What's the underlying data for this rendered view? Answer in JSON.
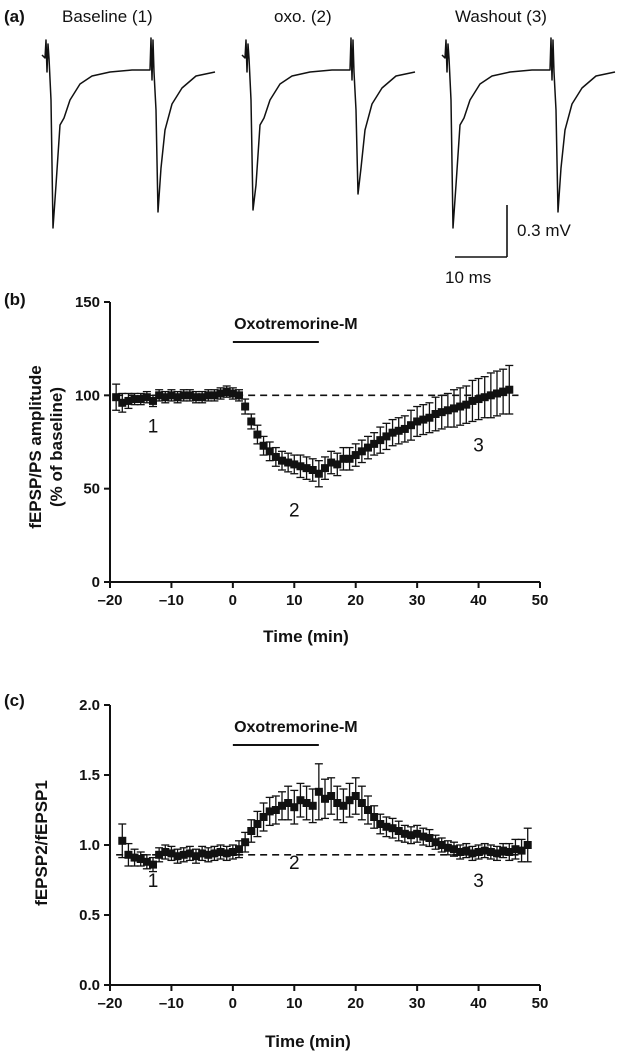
{
  "panel_a": {
    "label": "(a)",
    "traces": [
      "Baseline (1)",
      "oxo. (2)",
      "Washout (3)"
    ],
    "scale_v": "0.3 mV",
    "scale_t": "10 ms"
  },
  "colors": {
    "ink": "#111111",
    "background": "#ffffff"
  },
  "chart_data": [
    {
      "panel": "(b)",
      "type": "scatter",
      "title": "",
      "xlabel": "Time (min)",
      "ylabel": "fEPSP/PS amplitude",
      "ylabel2": "(% of baseline)",
      "xlim": [
        -20,
        50
      ],
      "ylim": [
        0,
        150
      ],
      "xticks": [
        "–20",
        "–10",
        "0",
        "10",
        "20",
        "30",
        "40",
        "50"
      ],
      "yticks": [
        "0",
        "50",
        "100",
        "150"
      ],
      "baseline": 100,
      "drug": {
        "label": "Oxotremorine-M",
        "start": 0,
        "end": 14
      },
      "period_labels": [
        {
          "text": "1",
          "x": -13,
          "y": 80
        },
        {
          "text": "2",
          "x": 10,
          "y": 35
        },
        {
          "text": "3",
          "x": 40,
          "y": 70
        }
      ],
      "series": [
        {
          "x": [
            -19,
            -18,
            -17,
            -16,
            -15,
            -14,
            -13,
            -12,
            -11,
            -10,
            -9,
            -8,
            -7,
            -6,
            -5,
            -4,
            -3,
            -2,
            -1,
            0,
            1,
            2,
            3,
            4,
            5,
            6,
            7,
            8,
            9,
            10,
            11,
            12,
            13,
            14,
            15,
            16,
            17,
            18,
            19,
            20,
            21,
            22,
            23,
            24,
            25,
            26,
            27,
            28,
            29,
            30,
            31,
            32,
            33,
            34,
            35,
            36,
            37,
            38,
            39,
            40,
            41,
            42,
            43,
            44,
            45
          ],
          "y": [
            99,
            96,
            97,
            98,
            98,
            99,
            97,
            100,
            99,
            100,
            99,
            100,
            100,
            99,
            99,
            100,
            100,
            101,
            102,
            101,
            100,
            94,
            86,
            79,
            73,
            70,
            67,
            65,
            64,
            63,
            62,
            61,
            60,
            58,
            61,
            64,
            63,
            66,
            66,
            68,
            70,
            72,
            74,
            76,
            78,
            80,
            81,
            82,
            84,
            86,
            87,
            88,
            90,
            91,
            92,
            93,
            94,
            95,
            97,
            98,
            99,
            100,
            101,
            102,
            103
          ],
          "err": [
            7,
            5,
            4,
            3,
            3,
            3,
            3,
            3,
            3,
            3,
            3,
            3,
            3,
            3,
            3,
            3,
            3,
            3,
            3,
            3,
            3,
            4,
            4,
            5,
            5,
            5,
            5,
            5,
            5,
            5,
            6,
            6,
            6,
            7,
            6,
            6,
            6,
            6,
            6,
            6,
            6,
            6,
            6,
            7,
            7,
            7,
            7,
            7,
            8,
            8,
            8,
            8,
            9,
            9,
            9,
            10,
            10,
            10,
            11,
            11,
            11,
            12,
            12,
            12,
            13
          ]
        }
      ]
    },
    {
      "panel": "(c)",
      "type": "scatter",
      "title": "",
      "xlabel": "Time (min)",
      "ylabel": "fEPSP2/fEPSP1",
      "xlim": [
        -20,
        50
      ],
      "ylim": [
        0.0,
        2.0
      ],
      "xticks": [
        "–20",
        "–10",
        "0",
        "10",
        "20",
        "30",
        "40",
        "50"
      ],
      "yticks": [
        "0.0",
        "0.5",
        "1.0",
        "1.5",
        "2.0"
      ],
      "baseline": 0.93,
      "drug": {
        "label": "Oxotremorine-M",
        "start": 0,
        "end": 14
      },
      "period_labels": [
        {
          "text": "1",
          "x": -13,
          "y": 0.7
        },
        {
          "text": "2",
          "x": 10,
          "y": 0.83
        },
        {
          "text": "3",
          "x": 40,
          "y": 0.7
        }
      ],
      "series": [
        {
          "x": [
            -18,
            -17,
            -16,
            -15,
            -14,
            -13,
            -12,
            -11,
            -10,
            -9,
            -8,
            -7,
            -6,
            -5,
            -4,
            -3,
            -2,
            -1,
            0,
            1,
            2,
            3,
            4,
            5,
            6,
            7,
            8,
            9,
            10,
            11,
            12,
            13,
            14,
            15,
            16,
            17,
            18,
            19,
            20,
            21,
            22,
            23,
            24,
            25,
            26,
            27,
            28,
            29,
            30,
            31,
            32,
            33,
            34,
            35,
            36,
            37,
            38,
            39,
            40,
            41,
            42,
            43,
            44,
            45,
            46,
            47,
            48
          ],
          "y": [
            1.03,
            0.93,
            0.91,
            0.9,
            0.88,
            0.86,
            0.93,
            0.95,
            0.94,
            0.92,
            0.93,
            0.94,
            0.92,
            0.94,
            0.93,
            0.94,
            0.95,
            0.94,
            0.95,
            0.97,
            1.02,
            1.1,
            1.15,
            1.2,
            1.24,
            1.25,
            1.28,
            1.3,
            1.27,
            1.32,
            1.3,
            1.28,
            1.38,
            1.33,
            1.35,
            1.3,
            1.28,
            1.32,
            1.35,
            1.3,
            1.25,
            1.2,
            1.15,
            1.13,
            1.12,
            1.1,
            1.08,
            1.07,
            1.08,
            1.06,
            1.05,
            1.02,
            1.0,
            0.98,
            0.97,
            0.95,
            0.96,
            0.94,
            0.95,
            0.96,
            0.95,
            0.94,
            0.96,
            0.95,
            0.97,
            0.96,
            1.0
          ],
          "err": [
            0.12,
            0.08,
            0.06,
            0.05,
            0.05,
            0.05,
            0.05,
            0.05,
            0.05,
            0.05,
            0.05,
            0.05,
            0.05,
            0.05,
            0.05,
            0.05,
            0.05,
            0.05,
            0.05,
            0.06,
            0.07,
            0.08,
            0.09,
            0.1,
            0.1,
            0.1,
            0.1,
            0.12,
            0.12,
            0.12,
            0.12,
            0.12,
            0.2,
            0.14,
            0.13,
            0.12,
            0.12,
            0.12,
            0.13,
            0.12,
            0.1,
            0.08,
            0.07,
            0.07,
            0.07,
            0.07,
            0.06,
            0.06,
            0.06,
            0.06,
            0.06,
            0.05,
            0.05,
            0.05,
            0.05,
            0.05,
            0.05,
            0.05,
            0.05,
            0.05,
            0.05,
            0.05,
            0.05,
            0.06,
            0.07,
            0.08,
            0.12
          ]
        }
      ]
    }
  ]
}
